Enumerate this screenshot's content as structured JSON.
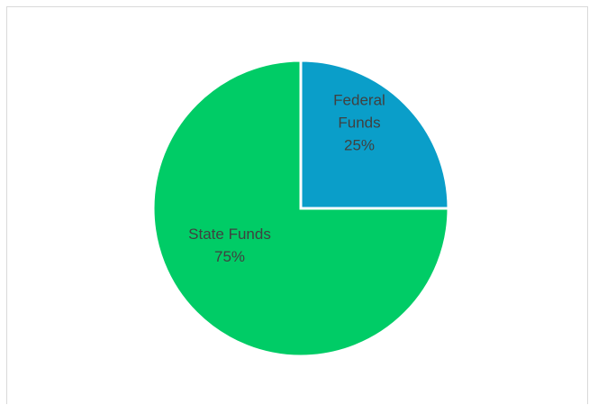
{
  "chart_data": {
    "type": "pie",
    "title": "",
    "slices": [
      {
        "name": "Federal Funds",
        "value": 25,
        "label_lines": [
          "Federal",
          "Funds",
          "25%"
        ],
        "color": "#0a9ec9"
      },
      {
        "name": "State Funds",
        "value": 75,
        "label_lines": [
          "State Funds",
          "75%"
        ],
        "color": "#00cc66"
      }
    ],
    "start_angle_deg": 0,
    "direction": "clockwise",
    "legend": "none",
    "data_labels": "inside"
  }
}
